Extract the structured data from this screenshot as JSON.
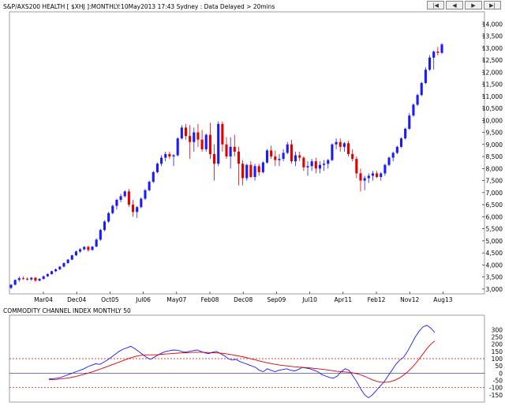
{
  "header": {
    "title": "S&P/AXS200 HEALTH [ $XHJ ]:MONTHLY:10May2013 17:43 Sydney : Data Delayed > 20mins",
    "nav_first": "|◀",
    "nav_prev": "◀",
    "nav_next": "▶",
    "nav_last": "▶|"
  },
  "colors": {
    "up": "#1a1aff",
    "down": "#e00000",
    "cci_line": "#1a1aff",
    "cci_signal": "#e00000",
    "guide": "#e00000",
    "zero": "#2020a0"
  },
  "chart_data": [
    {
      "type": "candlestick",
      "title": "S&P/AXS200 HEALTH [ $XHJ ]:MONTHLY:10May2013 17:43 Sydney : Data Delayed > 20mins",
      "ylim": [
        2800,
        14500
      ],
      "y_ticks": [
        "3,000",
        "3,500",
        "4,000",
        "4,500",
        "5,000",
        "5,500",
        "6,000",
        "6,500",
        "7,000",
        "7,500",
        "8,000",
        "8,500",
        "9,000",
        "9,500",
        "10,000",
        "10,500",
        "11,000",
        "11,500",
        "12,000",
        "12,500",
        "13,000",
        "13,500",
        "14,000"
      ],
      "x_ticks": [
        "Mar04",
        "Dec04",
        "Oct05",
        "Jul06",
        "May07",
        "Feb08",
        "Dec08",
        "Sep09",
        "Jul10",
        "Apr11",
        "Feb12",
        "Nov12",
        "Aug13"
      ],
      "grid": false,
      "bars": [
        {
          "o": 3050,
          "h": 3200,
          "l": 3000,
          "c": 3180
        },
        {
          "o": 3180,
          "h": 3400,
          "l": 3150,
          "c": 3380
        },
        {
          "o": 3380,
          "h": 3520,
          "l": 3300,
          "c": 3450
        },
        {
          "o": 3450,
          "h": 3520,
          "l": 3380,
          "c": 3430
        },
        {
          "o": 3430,
          "h": 3480,
          "l": 3360,
          "c": 3400
        },
        {
          "o": 3400,
          "h": 3500,
          "l": 3350,
          "c": 3470
        },
        {
          "o": 3470,
          "h": 3500,
          "l": 3300,
          "c": 3350
        },
        {
          "o": 3350,
          "h": 3450,
          "l": 3320,
          "c": 3420
        },
        {
          "o": 3420,
          "h": 3560,
          "l": 3400,
          "c": 3530
        },
        {
          "o": 3530,
          "h": 3650,
          "l": 3500,
          "c": 3620
        },
        {
          "o": 3620,
          "h": 3760,
          "l": 3600,
          "c": 3740
        },
        {
          "o": 3740,
          "h": 3850,
          "l": 3700,
          "c": 3820
        },
        {
          "o": 3820,
          "h": 3950,
          "l": 3780,
          "c": 3930
        },
        {
          "o": 3930,
          "h": 4100,
          "l": 3900,
          "c": 4080
        },
        {
          "o": 4080,
          "h": 4250,
          "l": 4050,
          "c": 4220
        },
        {
          "o": 4220,
          "h": 4420,
          "l": 4200,
          "c": 4400
        },
        {
          "o": 4400,
          "h": 4600,
          "l": 4370,
          "c": 4560
        },
        {
          "o": 4560,
          "h": 4700,
          "l": 4500,
          "c": 4650
        },
        {
          "o": 4650,
          "h": 4780,
          "l": 4600,
          "c": 4750
        },
        {
          "o": 4750,
          "h": 4800,
          "l": 4550,
          "c": 4620
        },
        {
          "o": 4620,
          "h": 4780,
          "l": 4600,
          "c": 4760
        },
        {
          "o": 4760,
          "h": 5100,
          "l": 4740,
          "c": 5050
        },
        {
          "o": 5050,
          "h": 5500,
          "l": 5000,
          "c": 5450
        },
        {
          "o": 5450,
          "h": 5850,
          "l": 5400,
          "c": 5800
        },
        {
          "o": 5800,
          "h": 6200,
          "l": 5750,
          "c": 6150
        },
        {
          "o": 6150,
          "h": 6500,
          "l": 6100,
          "c": 6450
        },
        {
          "o": 6450,
          "h": 6750,
          "l": 6300,
          "c": 6700
        },
        {
          "o": 6700,
          "h": 6950,
          "l": 6600,
          "c": 6850
        },
        {
          "o": 6850,
          "h": 7100,
          "l": 6800,
          "c": 7050
        },
        {
          "o": 7050,
          "h": 7150,
          "l": 6400,
          "c": 6500
        },
        {
          "o": 6500,
          "h": 6700,
          "l": 6000,
          "c": 6200
        },
        {
          "o": 6200,
          "h": 6450,
          "l": 5950,
          "c": 6400
        },
        {
          "o": 6400,
          "h": 6800,
          "l": 6350,
          "c": 6750
        },
        {
          "o": 6750,
          "h": 7150,
          "l": 6700,
          "c": 7100
        },
        {
          "o": 7100,
          "h": 7500,
          "l": 7050,
          "c": 7450
        },
        {
          "o": 7450,
          "h": 7900,
          "l": 7400,
          "c": 7850
        },
        {
          "o": 7850,
          "h": 8250,
          "l": 7800,
          "c": 8200
        },
        {
          "o": 8200,
          "h": 8550,
          "l": 8100,
          "c": 8450
        },
        {
          "o": 8450,
          "h": 8700,
          "l": 8300,
          "c": 8600
        },
        {
          "o": 8600,
          "h": 8700,
          "l": 8400,
          "c": 8500
        },
        {
          "o": 8500,
          "h": 8600,
          "l": 8100,
          "c": 8550
        },
        {
          "o": 8550,
          "h": 9300,
          "l": 8500,
          "c": 9250
        },
        {
          "o": 9250,
          "h": 9800,
          "l": 9200,
          "c": 9700
        },
        {
          "o": 9700,
          "h": 9850,
          "l": 9200,
          "c": 9350
        },
        {
          "o": 9350,
          "h": 9800,
          "l": 8400,
          "c": 9100
        },
        {
          "o": 9100,
          "h": 9700,
          "l": 8700,
          "c": 9500
        },
        {
          "o": 9500,
          "h": 9850,
          "l": 8900,
          "c": 9200
        },
        {
          "o": 9200,
          "h": 9600,
          "l": 8700,
          "c": 8800
        },
        {
          "o": 8800,
          "h": 9450,
          "l": 8700,
          "c": 9400
        },
        {
          "o": 9400,
          "h": 9900,
          "l": 8400,
          "c": 8600
        },
        {
          "o": 8600,
          "h": 9000,
          "l": 7500,
          "c": 8200
        },
        {
          "o": 8200,
          "h": 9950,
          "l": 8100,
          "c": 9850
        },
        {
          "o": 9850,
          "h": 9950,
          "l": 8700,
          "c": 9000
        },
        {
          "o": 9000,
          "h": 9300,
          "l": 8400,
          "c": 8500
        },
        {
          "o": 8500,
          "h": 9300,
          "l": 8000,
          "c": 8900
        },
        {
          "o": 8900,
          "h": 9400,
          "l": 8500,
          "c": 8700
        },
        {
          "o": 8700,
          "h": 8900,
          "l": 7300,
          "c": 8200
        },
        {
          "o": 8200,
          "h": 8350,
          "l": 7300,
          "c": 7600
        },
        {
          "o": 7600,
          "h": 8200,
          "l": 7500,
          "c": 8150
        },
        {
          "o": 8150,
          "h": 8300,
          "l": 7600,
          "c": 7650
        },
        {
          "o": 7650,
          "h": 8200,
          "l": 7500,
          "c": 8100
        },
        {
          "o": 8100,
          "h": 8200,
          "l": 7700,
          "c": 7850
        },
        {
          "o": 7850,
          "h": 8300,
          "l": 7800,
          "c": 8250
        },
        {
          "o": 8250,
          "h": 8800,
          "l": 8200,
          "c": 8750
        },
        {
          "o": 8750,
          "h": 8950,
          "l": 8400,
          "c": 8500
        },
        {
          "o": 8500,
          "h": 8750,
          "l": 8100,
          "c": 8350
        },
        {
          "o": 8350,
          "h": 8600,
          "l": 8100,
          "c": 8400
        },
        {
          "o": 8400,
          "h": 8800,
          "l": 8300,
          "c": 8650
        },
        {
          "o": 8650,
          "h": 9100,
          "l": 8600,
          "c": 9000
        },
        {
          "o": 9000,
          "h": 9200,
          "l": 8200,
          "c": 8300
        },
        {
          "o": 8300,
          "h": 8700,
          "l": 8100,
          "c": 8550
        },
        {
          "o": 8550,
          "h": 8700,
          "l": 8300,
          "c": 8450
        },
        {
          "o": 8450,
          "h": 8500,
          "l": 7900,
          "c": 8050
        },
        {
          "o": 8050,
          "h": 8300,
          "l": 7700,
          "c": 8100
        },
        {
          "o": 8100,
          "h": 8400,
          "l": 7900,
          "c": 8300
        },
        {
          "o": 8300,
          "h": 8450,
          "l": 7800,
          "c": 8000
        },
        {
          "o": 8000,
          "h": 8300,
          "l": 7800,
          "c": 8150
        },
        {
          "o": 8150,
          "h": 8350,
          "l": 7900,
          "c": 8200
        },
        {
          "o": 8200,
          "h": 8400,
          "l": 8000,
          "c": 8350
        },
        {
          "o": 8350,
          "h": 9050,
          "l": 8300,
          "c": 9000
        },
        {
          "o": 9000,
          "h": 9250,
          "l": 8800,
          "c": 9100
        },
        {
          "o": 9100,
          "h": 9250,
          "l": 8700,
          "c": 8900
        },
        {
          "o": 8900,
          "h": 9100,
          "l": 8700,
          "c": 9050
        },
        {
          "o": 9050,
          "h": 9150,
          "l": 8500,
          "c": 8600
        },
        {
          "o": 8600,
          "h": 8800,
          "l": 8300,
          "c": 8400
        },
        {
          "o": 8400,
          "h": 8500,
          "l": 7600,
          "c": 7800
        },
        {
          "o": 7800,
          "h": 8000,
          "l": 7050,
          "c": 7500
        },
        {
          "o": 7500,
          "h": 7700,
          "l": 7100,
          "c": 7600
        },
        {
          "o": 7600,
          "h": 7800,
          "l": 7400,
          "c": 7700
        },
        {
          "o": 7700,
          "h": 7900,
          "l": 7500,
          "c": 7800
        },
        {
          "o": 7800,
          "h": 7900,
          "l": 7600,
          "c": 7650
        },
        {
          "o": 7650,
          "h": 7850,
          "l": 7500,
          "c": 7800
        },
        {
          "o": 7800,
          "h": 8200,
          "l": 7700,
          "c": 8150
        },
        {
          "o": 8150,
          "h": 8500,
          "l": 8100,
          "c": 8450
        },
        {
          "o": 8450,
          "h": 8700,
          "l": 8300,
          "c": 8650
        },
        {
          "o": 8650,
          "h": 8950,
          "l": 8600,
          "c": 8900
        },
        {
          "o": 8900,
          "h": 9300,
          "l": 8850,
          "c": 9250
        },
        {
          "o": 9250,
          "h": 9700,
          "l": 9200,
          "c": 9650
        },
        {
          "o": 9650,
          "h": 10300,
          "l": 9600,
          "c": 10200
        },
        {
          "o": 10200,
          "h": 10700,
          "l": 10150,
          "c": 10650
        },
        {
          "o": 10650,
          "h": 11100,
          "l": 10600,
          "c": 11050
        },
        {
          "o": 11050,
          "h": 11600,
          "l": 11000,
          "c": 11550
        },
        {
          "o": 11550,
          "h": 12200,
          "l": 11500,
          "c": 12100
        },
        {
          "o": 12100,
          "h": 12700,
          "l": 12050,
          "c": 12600
        },
        {
          "o": 12600,
          "h": 12900,
          "l": 12100,
          "c": 12850
        },
        {
          "o": 12850,
          "h": 13050,
          "l": 12700,
          "c": 12800
        },
        {
          "o": 12800,
          "h": 13200,
          "l": 12750,
          "c": 13150
        }
      ]
    },
    {
      "type": "line",
      "title": "COMMODITY CHANNEL INDEX MONTHLY 50",
      "ylim": [
        -200,
        400
      ],
      "y_ticks": [
        "300",
        "250",
        "200",
        "150",
        "100",
        "50",
        "0",
        "-50",
        "-100",
        "-150"
      ],
      "grid": false,
      "series": [
        {
          "values": [
            -40,
            -38,
            -35,
            -30,
            -20,
            -10,
            0,
            10,
            20,
            30,
            45,
            55,
            65,
            60,
            75,
            90,
            110,
            130,
            150,
            165,
            175,
            185,
            170,
            150,
            130,
            110,
            95,
            110,
            125,
            140,
            150,
            155,
            160,
            158,
            150,
            145,
            150,
            155,
            160,
            150,
            140,
            135,
            145,
            150,
            135,
            120,
            100,
            90,
            95,
            80,
            70,
            60,
            50,
            40,
            20,
            10,
            30,
            20,
            10,
            20,
            25,
            30,
            20,
            15,
            25,
            40,
            35,
            30,
            20,
            10,
            -10,
            -20,
            -30,
            -35,
            -20,
            10,
            30,
            20,
            -20,
            -60,
            -110,
            -150,
            -170,
            -150,
            -120,
            -90,
            -60,
            -20,
            20,
            60,
            90,
            110,
            150,
            200,
            250,
            290,
            320,
            330,
            310,
            280
          ]
        },
        {
          "values": [
            -45,
            -44,
            -43,
            -40,
            -37,
            -33,
            -28,
            -22,
            -15,
            -8,
            0,
            8,
            17,
            26,
            36,
            46,
            56,
            66,
            76,
            86,
            96,
            106,
            114,
            120,
            124,
            126,
            126,
            126,
            128,
            130,
            132,
            134,
            136,
            138,
            140,
            141,
            142,
            143,
            144,
            144,
            143,
            142,
            141,
            140,
            138,
            135,
            131,
            127,
            122,
            117,
            111,
            105,
            98,
            91,
            84,
            77,
            71,
            66,
            61,
            57,
            53,
            50,
            47,
            44,
            42,
            40,
            38,
            36,
            33,
            30,
            27,
            24,
            20,
            16,
            12,
            10,
            8,
            6,
            2,
            -4,
            -12,
            -22,
            -34,
            -46,
            -56,
            -62,
            -64,
            -62,
            -56,
            -46,
            -32,
            -14,
            8,
            34,
            64,
            98,
            134,
            170,
            200,
            222
          ]
        }
      ]
    }
  ]
}
